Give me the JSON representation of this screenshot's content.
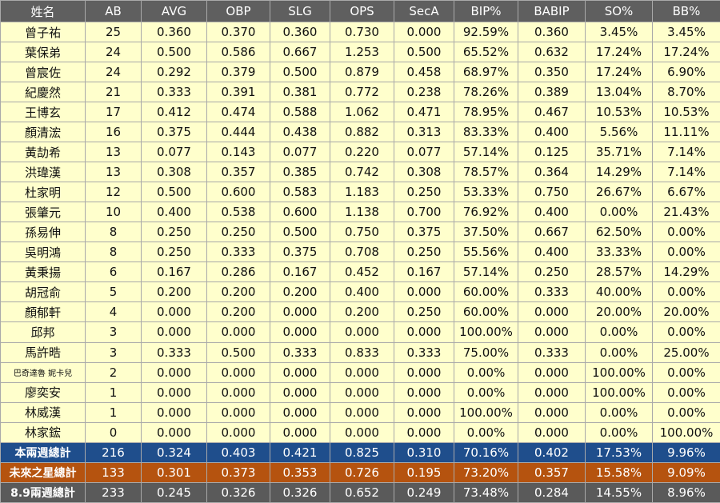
{
  "colors": {
    "header_bg": "#5f5f5f",
    "row_bg": "#ffffcc",
    "total1_bg": "#1f4e8c",
    "total2_bg": "#b5530f",
    "total3_bg": "#5a5a5a"
  },
  "header": [
    "姓名",
    "AB",
    "AVG",
    "OBP",
    "SLG",
    "OPS",
    "SecA",
    "BIP%",
    "BABIP",
    "SO%",
    "BB%"
  ],
  "rows": [
    [
      "曾子祐",
      "25",
      "0.360",
      "0.370",
      "0.360",
      "0.730",
      "0.000",
      "92.59%",
      "0.360",
      "3.45%",
      "3.45%"
    ],
    [
      "葉保弟",
      "24",
      "0.500",
      "0.586",
      "0.667",
      "1.253",
      "0.500",
      "65.52%",
      "0.632",
      "17.24%",
      "17.24%"
    ],
    [
      "曾宸佐",
      "24",
      "0.292",
      "0.379",
      "0.500",
      "0.879",
      "0.458",
      "68.97%",
      "0.350",
      "17.24%",
      "6.90%"
    ],
    [
      "紀慶然",
      "21",
      "0.333",
      "0.391",
      "0.381",
      "0.772",
      "0.238",
      "78.26%",
      "0.389",
      "13.04%",
      "8.70%"
    ],
    [
      "王博玄",
      "17",
      "0.412",
      "0.474",
      "0.588",
      "1.062",
      "0.471",
      "78.95%",
      "0.467",
      "10.53%",
      "10.53%"
    ],
    [
      "顏清浤",
      "16",
      "0.375",
      "0.444",
      "0.438",
      "0.882",
      "0.313",
      "83.33%",
      "0.400",
      "5.56%",
      "11.11%"
    ],
    [
      "黃劼希",
      "13",
      "0.077",
      "0.143",
      "0.077",
      "0.220",
      "0.077",
      "57.14%",
      "0.125",
      "35.71%",
      "7.14%"
    ],
    [
      "洪瑋漢",
      "13",
      "0.308",
      "0.357",
      "0.385",
      "0.742",
      "0.308",
      "78.57%",
      "0.364",
      "14.29%",
      "7.14%"
    ],
    [
      "杜家明",
      "12",
      "0.500",
      "0.600",
      "0.583",
      "1.183",
      "0.250",
      "53.33%",
      "0.750",
      "26.67%",
      "6.67%"
    ],
    [
      "張肇元",
      "10",
      "0.400",
      "0.538",
      "0.600",
      "1.138",
      "0.700",
      "76.92%",
      "0.400",
      "0.00%",
      "21.43%"
    ],
    [
      "孫易伸",
      "8",
      "0.250",
      "0.250",
      "0.500",
      "0.750",
      "0.375",
      "37.50%",
      "0.667",
      "62.50%",
      "0.00%"
    ],
    [
      "吳明鴻",
      "8",
      "0.250",
      "0.333",
      "0.375",
      "0.708",
      "0.250",
      "55.56%",
      "0.400",
      "33.33%",
      "0.00%"
    ],
    [
      "黃秉揚",
      "6",
      "0.167",
      "0.286",
      "0.167",
      "0.452",
      "0.167",
      "57.14%",
      "0.250",
      "28.57%",
      "14.29%"
    ],
    [
      "胡冠俞",
      "5",
      "0.200",
      "0.200",
      "0.200",
      "0.400",
      "0.000",
      "60.00%",
      "0.333",
      "40.00%",
      "0.00%"
    ],
    [
      "顏郁軒",
      "4",
      "0.000",
      "0.200",
      "0.000",
      "0.200",
      "0.250",
      "60.00%",
      "0.000",
      "20.00%",
      "20.00%"
    ],
    [
      "邱邦",
      "3",
      "0.000",
      "0.000",
      "0.000",
      "0.000",
      "0.000",
      "100.00%",
      "0.000",
      "0.00%",
      "0.00%"
    ],
    [
      "馬許晧",
      "3",
      "0.333",
      "0.500",
      "0.333",
      "0.833",
      "0.333",
      "75.00%",
      "0.333",
      "0.00%",
      "25.00%"
    ],
    [
      "巴奇達魯 妮卡兒",
      "2",
      "0.000",
      "0.000",
      "0.000",
      "0.000",
      "0.000",
      "0.00%",
      "0.000",
      "100.00%",
      "0.00%"
    ],
    [
      "廖奕安",
      "1",
      "0.000",
      "0.000",
      "0.000",
      "0.000",
      "0.000",
      "0.00%",
      "0.000",
      "100.00%",
      "0.00%"
    ],
    [
      "林威漢",
      "1",
      "0.000",
      "0.000",
      "0.000",
      "0.000",
      "0.000",
      "100.00%",
      "0.000",
      "0.00%",
      "0.00%"
    ],
    [
      "林家鋐",
      "0",
      "0.000",
      "0.000",
      "0.000",
      "0.000",
      "0.000",
      "0.00%",
      "0.000",
      "0.00%",
      "100.00%"
    ]
  ],
  "totals": [
    [
      "本兩週總計",
      "216",
      "0.324",
      "0.403",
      "0.421",
      "0.825",
      "0.310",
      "70.16%",
      "0.402",
      "17.53%",
      "9.96%"
    ],
    [
      "未來之星總計",
      "133",
      "0.301",
      "0.373",
      "0.353",
      "0.726",
      "0.195",
      "73.20%",
      "0.357",
      "15.58%",
      "9.09%"
    ],
    [
      "8.9兩週總計",
      "233",
      "0.245",
      "0.326",
      "0.326",
      "0.652",
      "0.249",
      "73.48%",
      "0.284",
      "14.55%",
      "8.96%"
    ]
  ]
}
